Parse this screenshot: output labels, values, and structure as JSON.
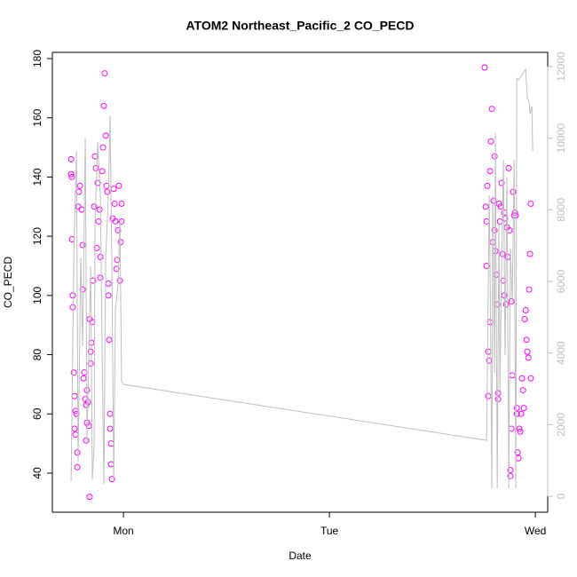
{
  "chart_data": {
    "type": "scatter",
    "title": "ATOM2 Northeast_Pacific_2 CO_PECD",
    "x_label": "Date",
    "y_label": "CO_PECD",
    "xlim": [
      -0.345,
      2.06
    ],
    "xticks": [
      {
        "value": 0,
        "label": "Mon"
      },
      {
        "value": 1,
        "label": "Tue"
      },
      {
        "value": 2,
        "label": "Wed"
      }
    ],
    "ylim": [
      26.8,
      182.1
    ],
    "yticks": [
      40,
      60,
      80,
      100,
      120,
      140,
      160,
      180
    ],
    "y2lim": [
      -446,
      12397
    ],
    "y2ticks": [
      0,
      2000,
      4000,
      6000,
      8000,
      10000,
      12000
    ],
    "y2_color": "#bebebe",
    "series": [
      {
        "color": "#ff00ff",
        "marker": "circle",
        "x": [
          -0.254,
          -0.254,
          -0.25,
          -0.25,
          -0.246,
          -0.246,
          -0.241,
          -0.237,
          -0.233,
          -0.237,
          -0.233,
          -0.228,
          -0.224,
          -0.224,
          -0.22,
          -0.216,
          -0.211,
          -0.203,
          -0.198,
          -0.198,
          -0.194,
          -0.19,
          -0.185,
          -0.181,
          -0.181,
          -0.177,
          -0.177,
          -0.172,
          -0.168,
          -0.164,
          -0.164,
          -0.159,
          -0.159,
          -0.155,
          -0.151,
          -0.147,
          -0.142,
          -0.138,
          -0.134,
          -0.129,
          -0.125,
          -0.121,
          -0.116,
          -0.112,
          -0.112,
          -0.103,
          -0.099,
          -0.095,
          -0.091,
          -0.086,
          -0.082,
          -0.078,
          -0.073,
          -0.073,
          -0.069,
          -0.065,
          -0.065,
          -0.06,
          -0.06,
          -0.056,
          -0.052,
          -0.047,
          -0.043,
          -0.039,
          -0.034,
          -0.03,
          -0.026,
          -0.022,
          -0.017,
          -0.013,
          -0.009,
          -0.009,
          1.754,
          1.759,
          1.763,
          1.763,
          1.767,
          1.771,
          1.771,
          1.776,
          1.78,
          1.78,
          1.784,
          1.789,
          1.793,
          1.797,
          1.802,
          1.802,
          1.806,
          1.81,
          1.815,
          1.819,
          1.819,
          1.823,
          1.828,
          1.832,
          1.836,
          1.841,
          1.845,
          1.849,
          1.849,
          1.853,
          1.858,
          1.862,
          1.866,
          1.871,
          1.875,
          1.879,
          1.879,
          1.884,
          1.884,
          1.888,
          1.892,
          1.897,
          1.901,
          1.905,
          1.91,
          1.91,
          1.914,
          1.918,
          1.922,
          1.927,
          1.931,
          1.935,
          1.94,
          1.944,
          1.948,
          1.953,
          1.957,
          1.961,
          1.966,
          1.97,
          1.974,
          1.978,
          1.978
        ],
        "values": [
          146,
          141,
          140,
          119,
          100,
          96,
          74,
          66,
          61,
          55,
          53,
          60,
          47,
          42,
          130,
          135,
          137,
          129,
          117,
          102,
          72,
          74,
          65,
          63,
          51,
          57,
          68,
          64,
          56,
          32,
          92,
          81,
          77,
          84,
          91,
          105,
          130,
          147,
          143,
          116,
          138,
          125,
          129,
          113,
          106,
          142,
          150,
          164,
          175,
          154,
          137,
          135,
          104,
          100,
          85,
          60,
          55,
          50,
          43,
          38,
          126,
          136,
          131,
          125,
          109,
          112,
          122,
          137,
          105,
          118,
          125,
          131,
          177,
          130,
          125,
          110,
          137,
          66,
          81,
          78,
          91,
          142,
          152,
          163,
          118,
          132,
          147,
          122,
          115,
          107,
          97,
          67,
          65,
          131,
          125,
          130,
          138,
          114,
          105,
          100,
          128,
          126,
          97,
          123,
          113,
          143,
          122,
          41,
          39,
          55,
          98,
          73,
          135,
          127,
          128,
          127,
          62,
          60,
          47,
          45,
          55,
          54,
          60,
          72,
          68,
          62,
          92,
          95,
          85,
          81,
          79,
          102,
          114,
          131,
          72
        ]
      },
      {
        "color": "#bebebe",
        "marker": "line",
        "axis": "y2",
        "x": [
          -0.254,
          -0.241,
          -0.228,
          -0.22,
          -0.207,
          -0.198,
          -0.185,
          -0.177,
          -0.168,
          -0.159,
          -0.151,
          -0.142,
          -0.138,
          -0.125,
          -0.112,
          -0.103,
          -0.095,
          -0.086,
          -0.073,
          -0.065,
          -0.056,
          -0.047,
          -0.039,
          -0.026,
          -0.017,
          -0.009,
          0,
          1.763,
          1.767,
          1.776,
          1.78,
          1.789,
          1.793,
          1.802,
          1.806,
          1.815,
          1.823,
          1.828,
          1.836,
          1.845,
          1.853,
          1.862,
          1.871,
          1.879,
          1.888,
          1.897,
          1.905,
          1.91,
          1.918,
          1.953,
          1.961,
          1.97,
          1.974,
          1.983,
          1.987
        ],
        "values": [
          421,
          6669,
          9643,
          967,
          6669,
          4190,
          10015,
          1463,
          3942,
          6421,
          471,
          1463,
          7660,
          9891,
          8404,
          3942,
          347,
          6669,
          8404,
          10635,
          6421,
          471,
          5181,
          5925,
          7660,
          3198,
          3124,
          1562,
          3446,
          8404,
          6421,
          223,
          8404,
          3446,
          10139,
          223,
          7660,
          2950,
          6421,
          9395,
          3942,
          8900,
          223,
          6916,
          5429,
          9395,
          223,
          11676,
          11626,
          11924,
          11131,
          11007,
          10685,
          10883,
          9643
        ]
      }
    ]
  }
}
